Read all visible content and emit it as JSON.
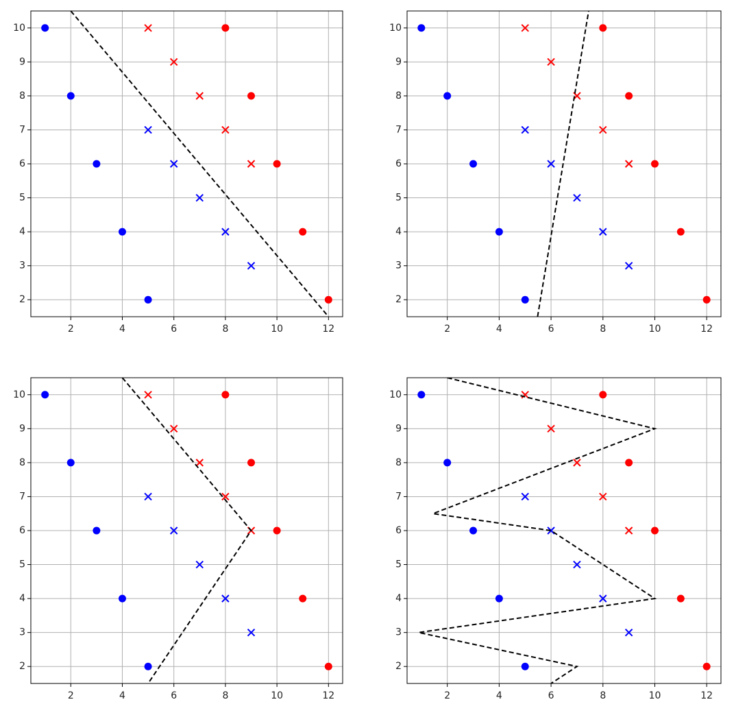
{
  "chart_data": [
    {
      "type": "scatter",
      "xlim": [
        0.45,
        12.55
      ],
      "ylim": [
        1.5,
        10.5
      ],
      "xticks": [
        2,
        4,
        6,
        8,
        10,
        12
      ],
      "yticks": [
        2,
        3,
        4,
        5,
        6,
        7,
        8,
        9,
        10
      ],
      "grid": true,
      "series": [
        {
          "color": "#0000ff",
          "marker": "o",
          "x": [
            1,
            2,
            3,
            4,
            5
          ],
          "y": [
            10,
            8,
            6,
            4,
            2
          ]
        },
        {
          "color": "#0000ff",
          "marker": "x",
          "x": [
            5,
            6,
            7,
            8,
            9
          ],
          "y": [
            7,
            6,
            5,
            4,
            3
          ]
        },
        {
          "color": "#ff0000",
          "marker": "x",
          "x": [
            5,
            6,
            7,
            8,
            9
          ],
          "y": [
            10,
            9,
            8,
            7,
            6
          ]
        },
        {
          "color": "#ff0000",
          "marker": "o",
          "x": [
            8,
            9,
            10,
            11,
            12
          ],
          "y": [
            10,
            8,
            6,
            4,
            2
          ]
        }
      ],
      "boundary": {
        "color": "#000000",
        "x": [
          2,
          12
        ],
        "y": [
          10.5,
          1.5
        ]
      }
    },
    {
      "type": "scatter",
      "xlim": [
        0.45,
        12.55
      ],
      "ylim": [
        1.5,
        10.5
      ],
      "xticks": [
        2,
        4,
        6,
        8,
        10,
        12
      ],
      "yticks": [
        2,
        3,
        4,
        5,
        6,
        7,
        8,
        9,
        10
      ],
      "grid": true,
      "series": [
        {
          "color": "#0000ff",
          "marker": "o",
          "x": [
            1,
            2,
            3,
            4,
            5
          ],
          "y": [
            10,
            8,
            6,
            4,
            2
          ]
        },
        {
          "color": "#0000ff",
          "marker": "x",
          "x": [
            5,
            6,
            7,
            8,
            9
          ],
          "y": [
            7,
            6,
            5,
            4,
            3
          ]
        },
        {
          "color": "#ff0000",
          "marker": "x",
          "x": [
            5,
            6,
            7,
            8,
            9
          ],
          "y": [
            10,
            9,
            8,
            7,
            6
          ]
        },
        {
          "color": "#ff0000",
          "marker": "o",
          "x": [
            8,
            9,
            10,
            11,
            12
          ],
          "y": [
            10,
            8,
            6,
            4,
            2
          ]
        }
      ],
      "boundary": {
        "color": "#000000",
        "x": [
          5.48,
          7.45
        ],
        "y": [
          1.5,
          10.5
        ]
      }
    },
    {
      "type": "scatter",
      "xlim": [
        0.45,
        12.55
      ],
      "ylim": [
        1.5,
        10.5
      ],
      "xticks": [
        2,
        4,
        6,
        8,
        10,
        12
      ],
      "yticks": [
        2,
        3,
        4,
        5,
        6,
        7,
        8,
        9,
        10
      ],
      "grid": true,
      "series": [
        {
          "color": "#0000ff",
          "marker": "o",
          "x": [
            1,
            2,
            3,
            4,
            5
          ],
          "y": [
            10,
            8,
            6,
            4,
            2
          ]
        },
        {
          "color": "#0000ff",
          "marker": "x",
          "x": [
            5,
            6,
            7,
            8,
            9
          ],
          "y": [
            7,
            6,
            5,
            4,
            3
          ]
        },
        {
          "color": "#ff0000",
          "marker": "x",
          "x": [
            5,
            6,
            7,
            8,
            9
          ],
          "y": [
            10,
            9,
            8,
            7,
            6
          ]
        },
        {
          "color": "#ff0000",
          "marker": "o",
          "x": [
            8,
            9,
            10,
            11,
            12
          ],
          "y": [
            10,
            8,
            6,
            4,
            2
          ]
        }
      ],
      "boundary": {
        "color": "#000000",
        "x": [
          4,
          9,
          5
        ],
        "y": [
          10.5,
          6,
          1.5
        ]
      }
    },
    {
      "type": "scatter",
      "xlim": [
        0.45,
        12.55
      ],
      "ylim": [
        1.5,
        10.5
      ],
      "xticks": [
        2,
        4,
        6,
        8,
        10,
        12
      ],
      "yticks": [
        2,
        3,
        4,
        5,
        6,
        7,
        8,
        9,
        10
      ],
      "grid": true,
      "series": [
        {
          "color": "#0000ff",
          "marker": "o",
          "x": [
            1,
            2,
            3,
            4,
            5
          ],
          "y": [
            10,
            8,
            6,
            4,
            2
          ]
        },
        {
          "color": "#0000ff",
          "marker": "x",
          "x": [
            5,
            6,
            7,
            8,
            9
          ],
          "y": [
            7,
            6,
            5,
            4,
            3
          ]
        },
        {
          "color": "#ff0000",
          "marker": "x",
          "x": [
            5,
            6,
            7,
            8,
            9
          ],
          "y": [
            10,
            9,
            8,
            7,
            6
          ]
        },
        {
          "color": "#ff0000",
          "marker": "o",
          "x": [
            8,
            9,
            10,
            11,
            12
          ],
          "y": [
            10,
            8,
            6,
            4,
            2
          ]
        }
      ],
      "boundary": {
        "color": "#000000",
        "x": [
          2,
          10,
          1.45,
          6,
          10,
          0.9,
          7,
          6
        ],
        "y": [
          10.5,
          9,
          6.5,
          6,
          4,
          3,
          2,
          1.5
        ]
      }
    }
  ]
}
